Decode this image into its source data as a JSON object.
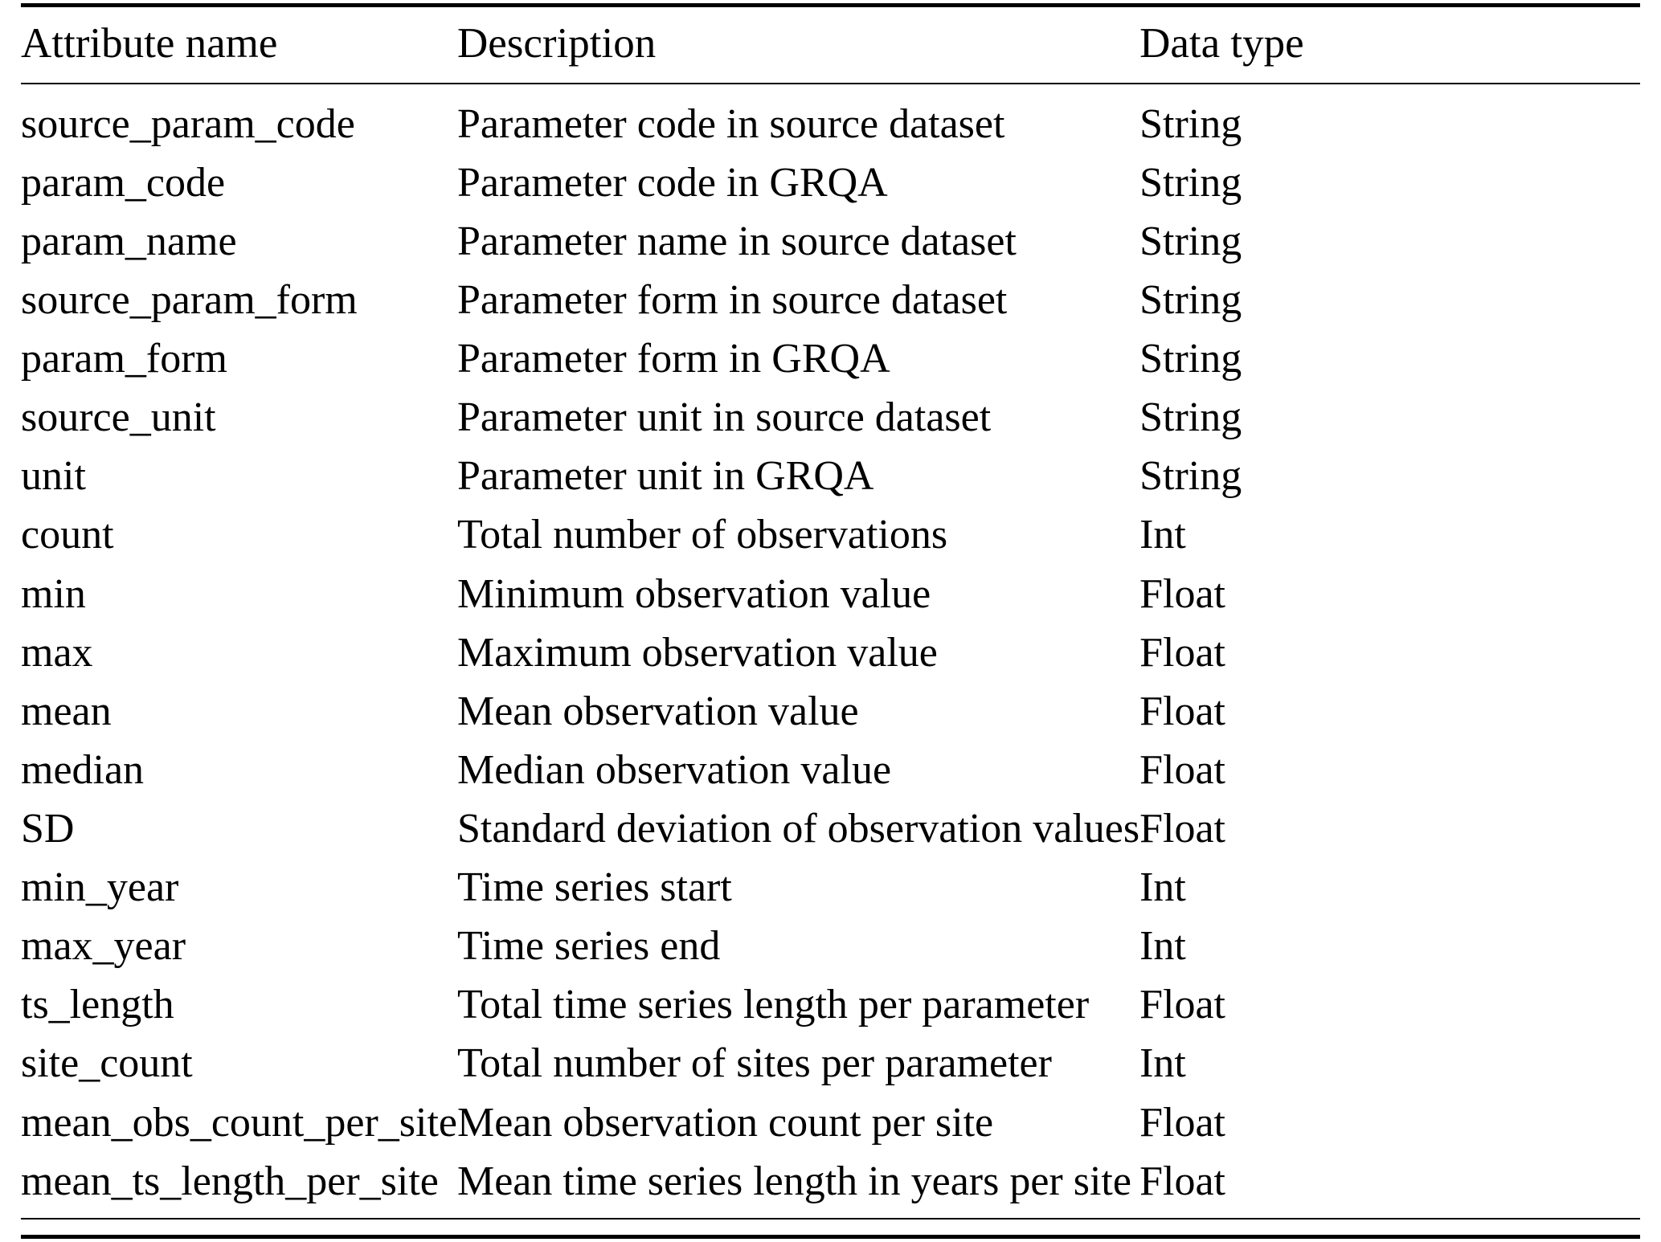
{
  "table": {
    "headers": [
      "Attribute name",
      "Description",
      "Data type"
    ],
    "rows": [
      [
        "source_param_code",
        "Parameter code in source dataset",
        "String"
      ],
      [
        "param_code",
        "Parameter code in GRQA",
        "String"
      ],
      [
        "param_name",
        "Parameter name in source dataset",
        "String"
      ],
      [
        "source_param_form",
        "Parameter form in source dataset",
        "String"
      ],
      [
        "param_form",
        "Parameter form in GRQA",
        "String"
      ],
      [
        "source_unit",
        "Parameter unit in source dataset",
        "String"
      ],
      [
        "unit",
        "Parameter unit in GRQA",
        "String"
      ],
      [
        "count",
        "Total number of observations",
        "Int"
      ],
      [
        "min",
        "Minimum observation value",
        "Float"
      ],
      [
        "max",
        "Maximum observation value",
        "Float"
      ],
      [
        "mean",
        "Mean observation value",
        "Float"
      ],
      [
        "median",
        "Median observation value",
        "Float"
      ],
      [
        "SD",
        "Standard deviation of observation values",
        "Float"
      ],
      [
        "min_year",
        "Time series start",
        "Int"
      ],
      [
        "max_year",
        "Time series end",
        "Int"
      ],
      [
        "ts_length",
        "Total time series length per parameter",
        "Float"
      ],
      [
        "site_count",
        "Total number of sites per parameter",
        "Int"
      ],
      [
        "mean_obs_count_per_site",
        "Mean observation count per site",
        "Float"
      ],
      [
        "mean_ts_length_per_site",
        "Mean time series length in years per site",
        "Float"
      ]
    ]
  }
}
